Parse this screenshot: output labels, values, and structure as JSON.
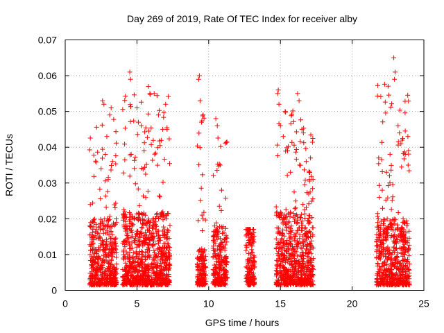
{
  "chart_data": {
    "type": "scatter",
    "title": "Day 269 of 2019, Rate Of TEC Index for receiver alby",
    "xlabel": "GPS time / hours",
    "ylabel": "ROTI / TECUs",
    "xlim": [
      0,
      25
    ],
    "ylim": [
      0,
      0.07
    ],
    "x_ticks": [
      0,
      5,
      10,
      15,
      20,
      25
    ],
    "y_ticks": [
      0,
      0.01,
      0.02,
      0.03,
      0.04,
      0.05,
      0.06,
      0.07
    ],
    "x_tick_labels": [
      "0",
      "5",
      "10",
      "15",
      "20",
      "25"
    ],
    "y_tick_labels": [
      "0",
      "0.01",
      "0.02",
      "0.03",
      "0.04",
      "0.05",
      "0.06",
      "0.07"
    ],
    "grid": true,
    "marker": "plus",
    "color": "#ff0000",
    "clusters": [
      {
        "x_range": [
          1.7,
          3.6
        ],
        "typical_max": 0.02,
        "peak": 0.053
      },
      {
        "x_range": [
          4.0,
          7.3
        ],
        "typical_max": 0.022,
        "peak": 0.061
      },
      {
        "x_range": [
          9.2,
          9.8
        ],
        "typical_max": 0.012,
        "peak": 0.06
      },
      {
        "x_range": [
          10.3,
          11.3
        ],
        "typical_max": 0.018,
        "peak": 0.048
      },
      {
        "x_range": [
          12.6,
          13.2
        ],
        "typical_max": 0.017,
        "peak": 0.017
      },
      {
        "x_range": [
          14.7,
          17.3
        ],
        "typical_max": 0.022,
        "peak": 0.056
      },
      {
        "x_range": [
          21.7,
          24.0
        ],
        "typical_max": 0.02,
        "peak": 0.065
      }
    ],
    "series": [
      {
        "values": [
          [
            1.75,
            0.024
          ],
          [
            1.8,
            0.018
          ],
          [
            1.9,
            0.008
          ],
          [
            2.5,
            0.034
          ],
          [
            2.6,
            0.053
          ],
          [
            2.7,
            0.052
          ],
          [
            2.8,
            0.038
          ],
          [
            2.9,
            0.043
          ],
          [
            3.0,
            0.031
          ],
          [
            3.1,
            0.049
          ],
          [
            3.2,
            0.051
          ],
          [
            3.3,
            0.036
          ],
          [
            4.5,
            0.061
          ],
          [
            4.55,
            0.059
          ],
          [
            4.6,
            0.038
          ],
          [
            5.0,
            0.051
          ],
          [
            5.1,
            0.047
          ],
          [
            5.3,
            0.046
          ],
          [
            5.5,
            0.039
          ],
          [
            5.8,
            0.057
          ],
          [
            5.9,
            0.055
          ],
          [
            6.2,
            0.055
          ],
          [
            6.5,
            0.049
          ],
          [
            6.8,
            0.045
          ],
          [
            7.0,
            0.052
          ],
          [
            7.1,
            0.045
          ],
          [
            9.3,
            0.059
          ],
          [
            9.35,
            0.06
          ],
          [
            9.4,
            0.053
          ],
          [
            9.5,
            0.047
          ],
          [
            9.6,
            0.02
          ],
          [
            9.7,
            0.011
          ],
          [
            10.5,
            0.048
          ],
          [
            10.6,
            0.046
          ],
          [
            10.8,
            0.035
          ],
          [
            10.9,
            0.028
          ],
          [
            12.8,
            0.017
          ],
          [
            13.0,
            0.015
          ],
          [
            14.8,
            0.055
          ],
          [
            14.85,
            0.056
          ],
          [
            14.9,
            0.052
          ],
          [
            15.0,
            0.046
          ],
          [
            15.2,
            0.043
          ],
          [
            15.5,
            0.039
          ],
          [
            15.7,
            0.033
          ],
          [
            16.2,
            0.055
          ],
          [
            16.3,
            0.053
          ],
          [
            16.5,
            0.045
          ],
          [
            16.6,
            0.044
          ],
          [
            16.8,
            0.036
          ],
          [
            17.0,
            0.033
          ],
          [
            17.1,
            0.037
          ],
          [
            21.9,
            0.026
          ],
          [
            22.1,
            0.028
          ],
          [
            22.4,
            0.033
          ],
          [
            22.6,
            0.032
          ],
          [
            22.9,
            0.065
          ],
          [
            23.0,
            0.061
          ],
          [
            22.95,
            0.059
          ],
          [
            23.2,
            0.046
          ],
          [
            23.3,
            0.044
          ],
          [
            23.4,
            0.041
          ],
          [
            23.7,
            0.038
          ],
          [
            23.9,
            0.035
          ]
        ]
      }
    ]
  }
}
